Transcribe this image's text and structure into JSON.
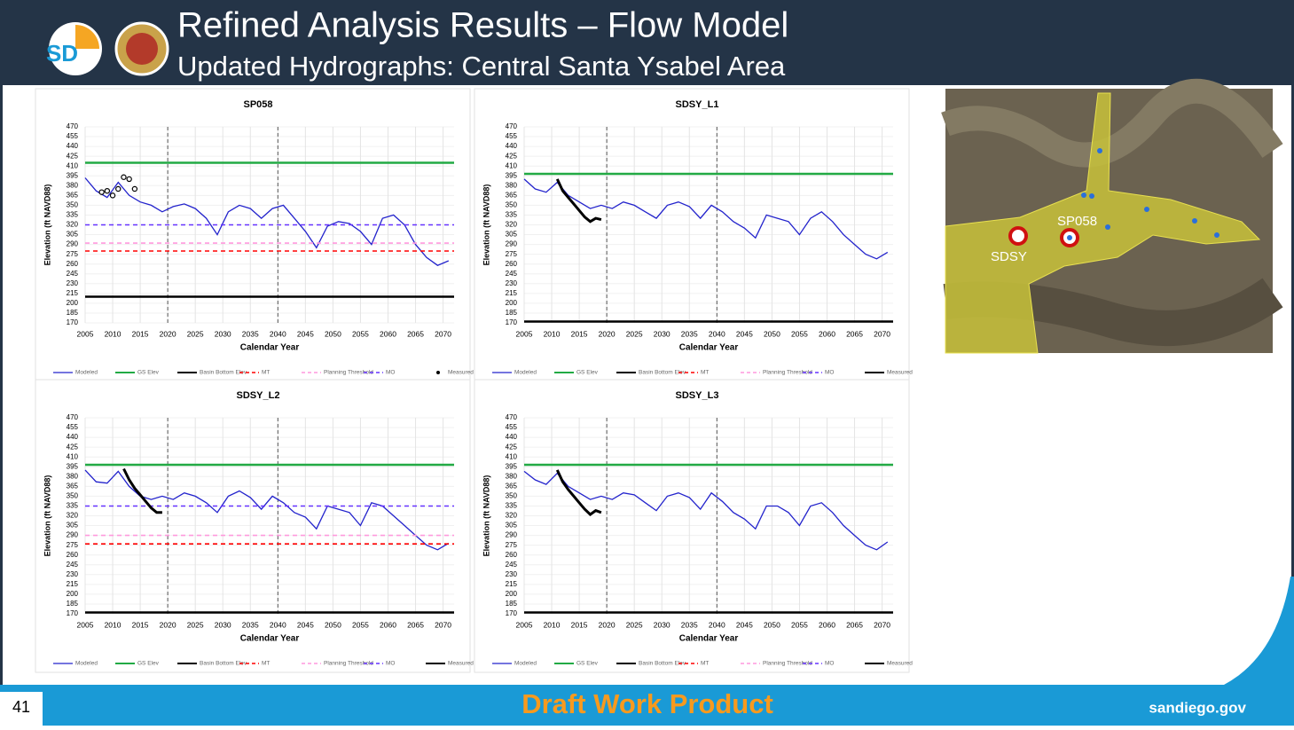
{
  "header": {
    "logo_text": "SD",
    "title": "Refined Analysis Results – Flow Model",
    "subtitle": "Updated Hydrographs: Central Santa Ysabel Area"
  },
  "chart_data": [
    {
      "type": "line",
      "title": "SP058",
      "y_label": "Elevation (ft NAVD88)",
      "x_label": "Calendar Year",
      "xlim": [
        2005,
        2072
      ],
      "xticks": [
        2005,
        2010,
        2015,
        2020,
        2025,
        2030,
        2035,
        2040,
        2045,
        2050,
        2055,
        2060,
        2065,
        2070
      ],
      "ylim": [
        170,
        470
      ],
      "yticks": [
        170,
        185,
        200,
        215,
        230,
        245,
        260,
        275,
        290,
        305,
        320,
        335,
        350,
        365,
        380,
        395,
        410,
        425,
        440,
        455,
        470
      ],
      "grid": true,
      "vlines": [
        2020,
        2040
      ],
      "series": [
        {
          "name": "Modeled",
          "color": "#2323cc",
          "style": "solid",
          "x": [
            2005,
            2007,
            2009,
            2011,
            2013,
            2015,
            2017,
            2019,
            2021,
            2023,
            2025,
            2027,
            2029,
            2031,
            2033,
            2035,
            2037,
            2039,
            2041,
            2043,
            2045,
            2047,
            2049,
            2051,
            2053,
            2055,
            2057,
            2059,
            2061,
            2063,
            2065,
            2067,
            2069,
            2071
          ],
          "values": [
            392,
            372,
            362,
            385,
            365,
            355,
            350,
            340,
            348,
            352,
            345,
            330,
            305,
            340,
            350,
            345,
            330,
            345,
            350,
            330,
            310,
            285,
            318,
            325,
            322,
            310,
            290,
            330,
            335,
            320,
            290,
            270,
            258,
            265
          ]
        },
        {
          "name": "GS Elev",
          "color": "#22aa44",
          "style": "thick",
          "x": [
            2005,
            2072
          ],
          "values": [
            415,
            415
          ]
        },
        {
          "name": "Basin Bottom Elev",
          "color": "#000000",
          "style": "thick",
          "x": [
            2005,
            2072
          ],
          "values": [
            210,
            210
          ]
        },
        {
          "name": "MT",
          "color": "#ff0000",
          "style": "dashed",
          "x": [
            2005,
            2072
          ],
          "values": [
            280,
            280
          ]
        },
        {
          "name": "Planning Threshold",
          "color": "#ff99dd",
          "style": "dashed",
          "x": [
            2005,
            2072
          ],
          "values": [
            292,
            292
          ]
        },
        {
          "name": "MO",
          "color": "#6633ff",
          "style": "dashed",
          "x": [
            2005,
            2072
          ],
          "values": [
            320,
            320
          ]
        },
        {
          "name": "Measured",
          "color": "#000000",
          "style": "markers",
          "x": [
            2008,
            2009,
            2010,
            2011,
            2012,
            2013,
            2014
          ],
          "values": [
            370,
            372,
            365,
            375,
            393,
            390,
            375
          ]
        }
      ]
    },
    {
      "type": "line",
      "title": "SDSY_L1",
      "y_label": "Elevation (ft NAVD88)",
      "x_label": "Calendar Year",
      "xlim": [
        2005,
        2072
      ],
      "xticks": [
        2005,
        2010,
        2015,
        2020,
        2025,
        2030,
        2035,
        2040,
        2045,
        2050,
        2055,
        2060,
        2065,
        2070
      ],
      "ylim": [
        170,
        470
      ],
      "yticks": [
        170,
        185,
        200,
        215,
        230,
        245,
        260,
        275,
        290,
        305,
        320,
        335,
        350,
        365,
        380,
        395,
        410,
        425,
        440,
        455,
        470
      ],
      "grid": true,
      "vlines": [
        2020,
        2040
      ],
      "series": [
        {
          "name": "Modeled",
          "color": "#2323cc",
          "style": "solid",
          "x": [
            2005,
            2007,
            2009,
            2011,
            2013,
            2015,
            2017,
            2019,
            2021,
            2023,
            2025,
            2027,
            2029,
            2031,
            2033,
            2035,
            2037,
            2039,
            2041,
            2043,
            2045,
            2047,
            2049,
            2051,
            2053,
            2055,
            2057,
            2059,
            2061,
            2063,
            2065,
            2067,
            2069,
            2071
          ],
          "values": [
            390,
            375,
            370,
            385,
            365,
            355,
            345,
            350,
            345,
            355,
            350,
            340,
            330,
            350,
            355,
            348,
            330,
            350,
            340,
            325,
            315,
            300,
            335,
            330,
            325,
            305,
            330,
            340,
            325,
            305,
            290,
            275,
            268,
            278
          ]
        },
        {
          "name": "GS Elev",
          "color": "#22aa44",
          "style": "thick",
          "x": [
            2005,
            2072
          ],
          "values": [
            398,
            398
          ]
        },
        {
          "name": "Basin Bottom Elev",
          "color": "#000000",
          "style": "thick",
          "x": [
            2005,
            2072
          ],
          "values": [
            172,
            172
          ]
        },
        {
          "name": "MT",
          "color": "#ff0000",
          "style": "dashed",
          "x": [],
          "values": []
        },
        {
          "name": "Planning Threshold",
          "color": "#ff99dd",
          "style": "dashed",
          "x": [],
          "values": []
        },
        {
          "name": "MO",
          "color": "#6633ff",
          "style": "dashed",
          "x": [],
          "values": []
        },
        {
          "name": "Measured",
          "color": "#000000",
          "style": "heavy",
          "x": [
            2011,
            2012,
            2013,
            2014,
            2015,
            2016,
            2017,
            2018,
            2019
          ],
          "values": [
            390,
            372,
            362,
            352,
            342,
            332,
            325,
            330,
            328
          ]
        }
      ]
    },
    {
      "type": "line",
      "title": "SDSY_L2",
      "y_label": "Elevation (ft NAVD88)",
      "x_label": "Calendar Year",
      "xlim": [
        2005,
        2072
      ],
      "xticks": [
        2005,
        2010,
        2015,
        2020,
        2025,
        2030,
        2035,
        2040,
        2045,
        2050,
        2055,
        2060,
        2065,
        2070
      ],
      "ylim": [
        170,
        470
      ],
      "yticks": [
        170,
        185,
        200,
        215,
        230,
        245,
        260,
        275,
        290,
        305,
        320,
        335,
        350,
        365,
        380,
        395,
        410,
        425,
        440,
        455,
        470
      ],
      "grid": true,
      "vlines": [
        2020,
        2040
      ],
      "series": [
        {
          "name": "Modeled",
          "color": "#2323cc",
          "style": "solid",
          "x": [
            2005,
            2007,
            2009,
            2011,
            2013,
            2015,
            2017,
            2019,
            2021,
            2023,
            2025,
            2027,
            2029,
            2031,
            2033,
            2035,
            2037,
            2039,
            2041,
            2043,
            2045,
            2047,
            2049,
            2051,
            2053,
            2055,
            2057,
            2059,
            2061,
            2063,
            2065,
            2067,
            2069,
            2071
          ],
          "values": [
            390,
            372,
            370,
            388,
            365,
            350,
            345,
            350,
            345,
            355,
            350,
            340,
            325,
            350,
            358,
            348,
            330,
            350,
            340,
            325,
            318,
            300,
            335,
            330,
            325,
            305,
            340,
            335,
            320,
            305,
            290,
            275,
            268,
            278
          ]
        },
        {
          "name": "GS Elev",
          "color": "#22aa44",
          "style": "thick",
          "x": [
            2005,
            2072
          ],
          "values": [
            398,
            398
          ]
        },
        {
          "name": "Basin Bottom Elev",
          "color": "#000000",
          "style": "thick",
          "x": [
            2005,
            2072
          ],
          "values": [
            172,
            172
          ]
        },
        {
          "name": "MT",
          "color": "#ff0000",
          "style": "dashed",
          "x": [
            2005,
            2072
          ],
          "values": [
            277,
            277
          ]
        },
        {
          "name": "Planning Threshold",
          "color": "#ff99dd",
          "style": "dashed",
          "x": [
            2005,
            2072
          ],
          "values": [
            290,
            290
          ]
        },
        {
          "name": "MO",
          "color": "#6633ff",
          "style": "dashed",
          "x": [
            2005,
            2072
          ],
          "values": [
            335,
            335
          ]
        },
        {
          "name": "Measured",
          "color": "#000000",
          "style": "heavy",
          "x": [
            2012,
            2013,
            2014,
            2015,
            2016,
            2017,
            2018,
            2019
          ],
          "values": [
            392,
            375,
            362,
            352,
            342,
            332,
            325,
            325
          ]
        }
      ]
    },
    {
      "type": "line",
      "title": "SDSY_L3",
      "y_label": "Elevation (ft NAVD88)",
      "x_label": "Calendar Year",
      "xlim": [
        2005,
        2072
      ],
      "xticks": [
        2005,
        2010,
        2015,
        2020,
        2025,
        2030,
        2035,
        2040,
        2045,
        2050,
        2055,
        2060,
        2065,
        2070
      ],
      "ylim": [
        170,
        470
      ],
      "yticks": [
        170,
        185,
        200,
        215,
        230,
        245,
        260,
        275,
        290,
        305,
        320,
        335,
        350,
        365,
        380,
        395,
        410,
        425,
        440,
        455,
        470
      ],
      "grid": true,
      "vlines": [
        2020,
        2040
      ],
      "series": [
        {
          "name": "Modeled",
          "color": "#2323cc",
          "style": "solid",
          "x": [
            2005,
            2007,
            2009,
            2011,
            2013,
            2015,
            2017,
            2019,
            2021,
            2023,
            2025,
            2027,
            2029,
            2031,
            2033,
            2035,
            2037,
            2039,
            2041,
            2043,
            2045,
            2047,
            2049,
            2051,
            2053,
            2055,
            2057,
            2059,
            2061,
            2063,
            2065,
            2067,
            2069,
            2071
          ],
          "values": [
            388,
            375,
            368,
            385,
            365,
            355,
            345,
            350,
            345,
            355,
            352,
            340,
            328,
            350,
            355,
            348,
            330,
            355,
            342,
            325,
            315,
            300,
            335,
            335,
            325,
            305,
            335,
            340,
            325,
            305,
            290,
            275,
            268,
            280
          ]
        },
        {
          "name": "GS Elev",
          "color": "#22aa44",
          "style": "thick",
          "x": [
            2005,
            2072
          ],
          "values": [
            398,
            398
          ]
        },
        {
          "name": "Basin Bottom Elev",
          "color": "#000000",
          "style": "thick",
          "x": [
            2005,
            2072
          ],
          "values": [
            172,
            172
          ]
        },
        {
          "name": "MT",
          "color": "#ff0000",
          "style": "dashed",
          "x": [],
          "values": []
        },
        {
          "name": "Planning Threshold",
          "color": "#ff99dd",
          "style": "dashed",
          "x": [],
          "values": []
        },
        {
          "name": "MO",
          "color": "#6633ff",
          "style": "dashed",
          "x": [],
          "values": []
        },
        {
          "name": "Measured",
          "color": "#000000",
          "style": "heavy",
          "x": [
            2011,
            2012,
            2013,
            2014,
            2015,
            2016,
            2017,
            2018,
            2019
          ],
          "values": [
            390,
            372,
            360,
            350,
            340,
            330,
            322,
            328,
            325
          ]
        }
      ]
    }
  ],
  "map": {
    "labels": [
      "SP058",
      "SDSY"
    ]
  },
  "footer": {
    "page": "41",
    "status": "Draft Work Product",
    "site": "sandiego.gov"
  }
}
